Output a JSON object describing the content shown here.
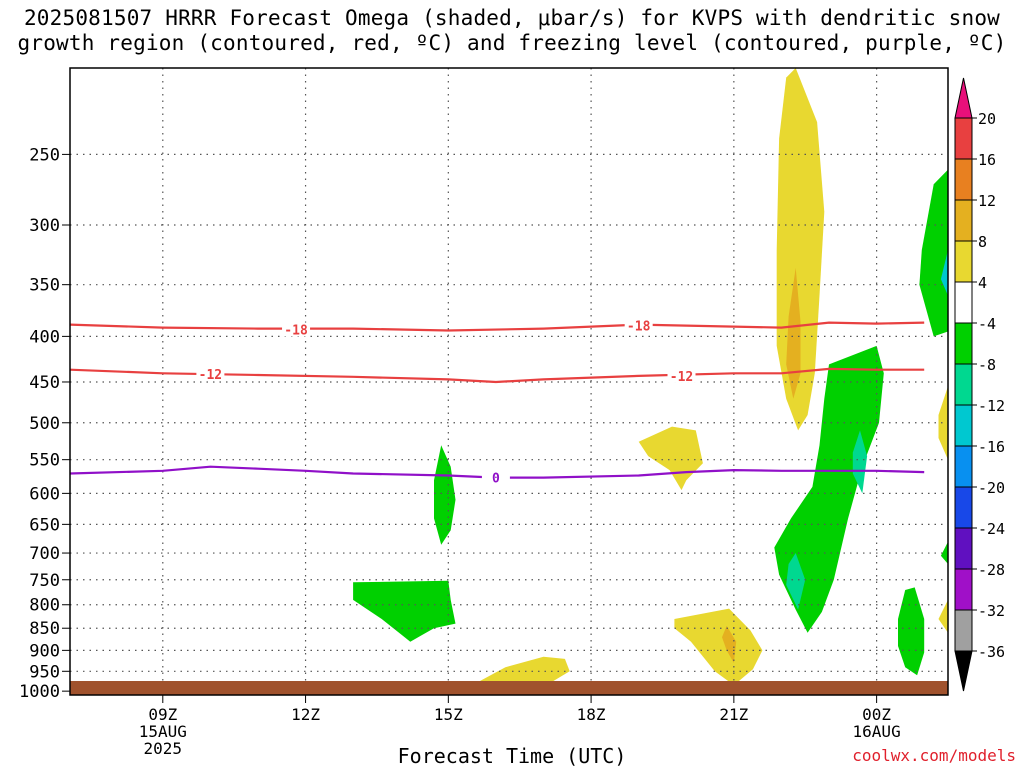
{
  "title": {
    "line1": "2025081507 HRRR Forecast Omega (shaded, μbar/s) for KVPS with dendritic snow",
    "line2": "growth region (contoured, red, ºC) and freezing level (contoured, purple, ºC)"
  },
  "credit": "coolwx.com/models",
  "chart_data": {
    "type": "contour",
    "xlabel": "Forecast Time (UTC)",
    "x_ticks": [
      {
        "label": "09Z",
        "sub": [
          "15AUG",
          "2025"
        ],
        "hour": 9
      },
      {
        "label": "12Z",
        "sub": [],
        "hour": 12
      },
      {
        "label": "15Z",
        "sub": [],
        "hour": 15
      },
      {
        "label": "18Z",
        "sub": [],
        "hour": 18
      },
      {
        "label": "21Z",
        "sub": [],
        "hour": 21
      },
      {
        "label": "00Z",
        "sub": [
          "16AUG"
        ],
        "hour": 24
      }
    ],
    "xlim": [
      7.05,
      25
    ],
    "y_scale": "log-pressure",
    "y_ticks": [
      250,
      300,
      350,
      400,
      450,
      500,
      550,
      600,
      650,
      700,
      750,
      800,
      850,
      900,
      950,
      1000
    ],
    "ylim": [
      200,
      1010
    ],
    "grid": true,
    "colorbar": {
      "ticks": [
        "20",
        "16",
        "12",
        "8",
        "4",
        "-4",
        "-8",
        "-12",
        "-16",
        "-20",
        "-24",
        "-28",
        "-32",
        "-36"
      ],
      "colors": [
        "#e8d830",
        "#e4b020",
        "#e88020",
        "#e84040",
        "#ffffff",
        "#00d000",
        "#00d890",
        "#00c8d0",
        "#0890f0",
        "#1848e8",
        "#6010c0",
        "#a010c8",
        "#a0a0a0"
      ]
    },
    "contours": [
      {
        "label": "-18",
        "color": "#e84040",
        "points": [
          [
            7.05,
            388
          ],
          [
            9,
            391
          ],
          [
            11,
            392
          ],
          [
            13,
            392
          ],
          [
            15,
            394
          ],
          [
            17,
            392
          ],
          [
            19,
            388
          ],
          [
            21,
            390
          ],
          [
            22,
            391
          ],
          [
            23,
            386
          ],
          [
            24,
            387
          ],
          [
            25,
            386
          ]
        ],
        "label_at": [
          [
            11.8,
            393
          ],
          [
            19.0,
            389
          ]
        ]
      },
      {
        "label": "-12",
        "color": "#e84040",
        "points": [
          [
            7.05,
            436
          ],
          [
            9,
            440
          ],
          [
            11,
            442
          ],
          [
            13,
            444
          ],
          [
            15,
            447
          ],
          [
            16,
            450
          ],
          [
            17,
            447
          ],
          [
            19,
            443
          ],
          [
            21,
            440
          ],
          [
            22,
            440
          ],
          [
            23,
            435
          ],
          [
            24,
            436
          ],
          [
            25,
            436
          ]
        ],
        "label_at": [
          [
            10.0,
            441
          ],
          [
            19.9,
            443
          ]
        ]
      },
      {
        "label": "0",
        "color": "#9010c8",
        "points": [
          [
            7.05,
            570
          ],
          [
            9,
            566
          ],
          [
            10,
            560
          ],
          [
            11,
            563
          ],
          [
            12,
            566
          ],
          [
            13,
            570
          ],
          [
            15,
            573
          ],
          [
            16,
            576
          ],
          [
            17,
            576
          ],
          [
            19,
            573
          ],
          [
            20,
            568
          ],
          [
            21,
            565
          ],
          [
            22,
            566
          ],
          [
            23,
            566
          ],
          [
            24,
            566
          ],
          [
            25,
            568
          ]
        ],
        "label_at": [
          [
            16.0,
            576
          ]
        ]
      }
    ],
    "regions": [
      {
        "color": "#e8d830",
        "points": [
          [
            22.3,
            200
          ],
          [
            22.75,
            230
          ],
          [
            22.9,
            290
          ],
          [
            22.8,
            360
          ],
          [
            22.7,
            440
          ],
          [
            22.55,
            490
          ],
          [
            22.35,
            510
          ],
          [
            22.1,
            470
          ],
          [
            21.9,
            410
          ],
          [
            21.9,
            320
          ],
          [
            21.95,
            240
          ],
          [
            22.1,
            205
          ]
        ]
      },
      {
        "color": "#e4b020",
        "points": [
          [
            22.3,
            335
          ],
          [
            22.4,
            385
          ],
          [
            22.4,
            440
          ],
          [
            22.25,
            470
          ],
          [
            22.1,
            430
          ],
          [
            22.15,
            380
          ]
        ]
      },
      {
        "color": "#00d000",
        "points": [
          [
            23.0,
            430
          ],
          [
            24.0,
            410
          ],
          [
            24.15,
            440
          ],
          [
            24.05,
            500
          ],
          [
            23.7,
            560
          ],
          [
            23.4,
            640
          ],
          [
            23.1,
            750
          ],
          [
            22.85,
            815
          ],
          [
            22.55,
            860
          ],
          [
            22.3,
            810
          ],
          [
            21.95,
            740
          ],
          [
            21.85,
            690
          ],
          [
            22.2,
            640
          ],
          [
            22.65,
            590
          ],
          [
            22.8,
            530
          ],
          [
            22.9,
            470
          ]
        ]
      },
      {
        "color": "#00d890",
        "points": [
          [
            23.65,
            510
          ],
          [
            23.8,
            545
          ],
          [
            23.7,
            600
          ],
          [
            23.5,
            570
          ],
          [
            23.5,
            540
          ]
        ]
      },
      {
        "color": "#00d890",
        "points": [
          [
            22.3,
            700
          ],
          [
            22.5,
            750
          ],
          [
            22.35,
            810
          ],
          [
            22.1,
            760
          ],
          [
            22.15,
            720
          ]
        ]
      },
      {
        "color": "#e8d830",
        "points": [
          [
            19.0,
            525
          ],
          [
            19.7,
            505
          ],
          [
            20.2,
            510
          ],
          [
            20.35,
            555
          ],
          [
            20.0,
            580
          ],
          [
            19.9,
            595
          ],
          [
            19.65,
            565
          ],
          [
            19.2,
            545
          ]
        ]
      },
      {
        "color": "#00d000",
        "points": [
          [
            14.85,
            530
          ],
          [
            15.05,
            560
          ],
          [
            15.15,
            610
          ],
          [
            15.05,
            660
          ],
          [
            14.85,
            685
          ],
          [
            14.7,
            640
          ],
          [
            14.7,
            580
          ]
        ]
      },
      {
        "color": "#00d000",
        "points": [
          [
            13.0,
            755
          ],
          [
            15.0,
            752
          ],
          [
            15.05,
            790
          ],
          [
            15.15,
            840
          ],
          [
            14.7,
            850
          ],
          [
            14.2,
            880
          ],
          [
            13.6,
            830
          ],
          [
            13.0,
            790
          ]
        ]
      },
      {
        "color": "#e8d830",
        "points": [
          [
            15.5,
            985
          ],
          [
            16.2,
            940
          ],
          [
            17.0,
            915
          ],
          [
            17.45,
            920
          ],
          [
            17.55,
            950
          ],
          [
            17.2,
            975
          ],
          [
            16.2,
            1000
          ],
          [
            15.5,
            1005
          ]
        ]
      },
      {
        "color": "#e8d830",
        "points": [
          [
            19.75,
            830
          ],
          [
            20.9,
            808
          ],
          [
            21.35,
            855
          ],
          [
            21.6,
            900
          ],
          [
            21.4,
            945
          ],
          [
            21.0,
            985
          ],
          [
            20.6,
            950
          ],
          [
            20.1,
            880
          ],
          [
            19.75,
            850
          ]
        ]
      },
      {
        "color": "#e4b020",
        "points": [
          [
            20.85,
            845
          ],
          [
            21.05,
            880
          ],
          [
            21.0,
            930
          ],
          [
            20.85,
            900
          ],
          [
            20.75,
            870
          ]
        ]
      },
      {
        "color": "#00d000",
        "points": [
          [
            24.6,
            770
          ],
          [
            24.8,
            765
          ],
          [
            25.0,
            830
          ],
          [
            25.0,
            905
          ],
          [
            24.85,
            960
          ],
          [
            24.6,
            940
          ],
          [
            24.45,
            890
          ],
          [
            24.45,
            830
          ]
        ]
      },
      {
        "color": "#00d000",
        "points": [
          [
            25.2,
            270
          ],
          [
            25.5,
            260
          ],
          [
            25.5,
            395
          ],
          [
            25.2,
            400
          ],
          [
            24.9,
            350
          ],
          [
            24.95,
            320
          ]
        ]
      },
      {
        "color": "#00c8d0",
        "points": [
          [
            25.5,
            320
          ],
          [
            25.5,
            360
          ],
          [
            25.35,
            345
          ]
        ]
      },
      {
        "color": "#e8d830",
        "points": [
          [
            25.5,
            455
          ],
          [
            25.5,
            550
          ],
          [
            25.3,
            520
          ],
          [
            25.3,
            490
          ]
        ]
      },
      {
        "color": "#00d000",
        "points": [
          [
            25.5,
            680
          ],
          [
            25.5,
            720
          ],
          [
            25.35,
            705
          ]
        ]
      },
      {
        "color": "#e8d830",
        "points": [
          [
            25.5,
            790
          ],
          [
            25.5,
            860
          ],
          [
            25.3,
            830
          ]
        ]
      }
    ]
  }
}
